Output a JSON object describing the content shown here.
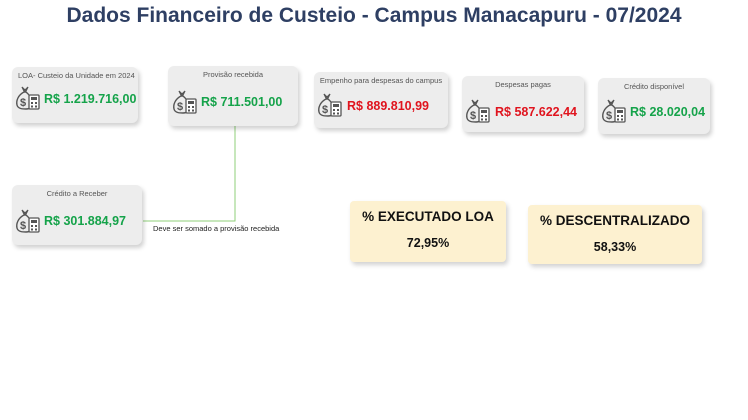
{
  "title": "Dados Financeiro de Custeio - Campus Manacapuru - 07/2024",
  "cards": {
    "loa": {
      "label": "LOA- Custeio da Unidade em 2024",
      "value": "R$ 1.219.716,00",
      "icon": "money-bag-calculator-icon"
    },
    "provisao": {
      "label": "Provisão recebida",
      "value": "R$ 711.501,00",
      "icon": "money-bag-calculator-icon"
    },
    "empenho": {
      "label": "Empenho para despesas do campus",
      "value": "R$ 889.810,99",
      "icon": "money-bag-calculator-icon"
    },
    "despesas": {
      "label": "Despesas pagas",
      "value": "R$ 587.622,44",
      "icon": "money-bag-calculator-icon"
    },
    "credito_disponivel": {
      "label": "Crédito disponível",
      "value": "R$ 28.020,04",
      "icon": "money-bag-calculator-icon"
    },
    "credito_receber": {
      "label": "Crédito a Receber",
      "value": "R$ 301.884,97",
      "icon": "money-bag-calculator-icon"
    }
  },
  "note": "Deve ser somado a provisão recebida",
  "kpis": {
    "executado": {
      "label": "% EXECUTADO LOA",
      "value": "72,95%"
    },
    "descentralizado": {
      "label": "% DESCENTRALIZADO",
      "value": "58,33%"
    }
  },
  "colors": {
    "title": "#2e3f63",
    "positive": "#15a34a",
    "negative": "#e0141e",
    "kpi_bg": "#fdf1d0",
    "card_bg": "#ededed",
    "connector": "#8fcf7a"
  }
}
